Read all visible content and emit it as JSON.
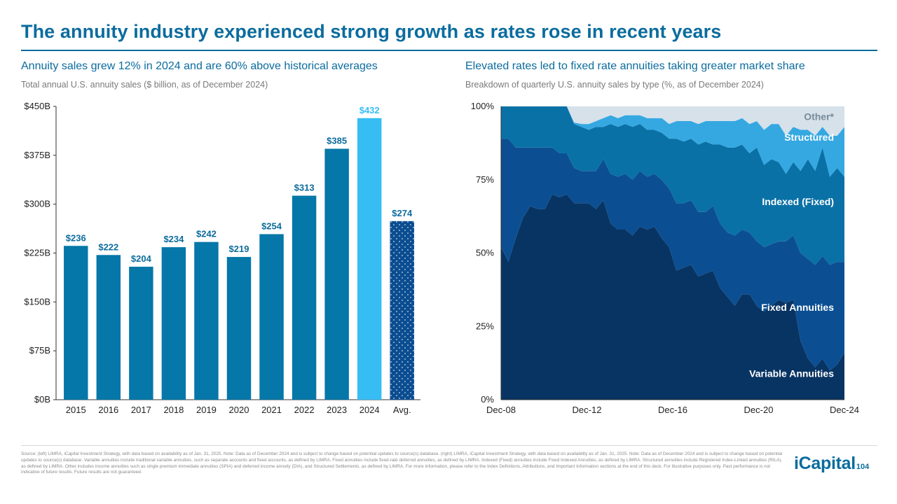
{
  "page_title": "The annuity industry experienced strong growth as rates rose in recent years",
  "left_panel": {
    "title": "Annuity sales grew 12% in 2024 and are 60% above historical averages",
    "caption": "Total annual U.S. annuity sales ($ billion, as of December 2024)"
  },
  "right_panel": {
    "title": "Elevated rates led to fixed rate annuities taking greater market share",
    "caption": "Breakdown of quarterly U.S. annuity sales by type (%, as of December 2024)"
  },
  "chart_data": [
    {
      "type": "bar",
      "title": "Total annual U.S. annuity sales ($ billion, as of December 2024)",
      "categories": [
        "2015",
        "2016",
        "2017",
        "2018",
        "2019",
        "2020",
        "2021",
        "2022",
        "2023",
        "2024",
        "Avg."
      ],
      "values": [
        236,
        222,
        204,
        234,
        242,
        219,
        254,
        313,
        385,
        432,
        274
      ],
      "data_labels": [
        "$236",
        "$222",
        "$204",
        "$234",
        "$242",
        "$219",
        "$254",
        "$313",
        "$385",
        "$432",
        "$274"
      ],
      "highlight_category": "2024",
      "average_category": "Avg.",
      "ylim": [
        0,
        450
      ],
      "yticks": [
        0,
        75,
        150,
        225,
        300,
        375,
        450
      ],
      "ytick_labels": [
        "$0B",
        "$75B",
        "$150B",
        "$225B",
        "$300B",
        "$375B",
        "$450B"
      ],
      "xlabel": "",
      "ylabel": "",
      "colors": {
        "bar": "#0577a8",
        "highlight": "#36bdf4",
        "average": "#0b4d91",
        "label": "#0b6c9e"
      }
    },
    {
      "type": "area",
      "stacked": true,
      "title": "Breakdown of quarterly U.S. annuity sales by type (%, as of December 2024)",
      "x_start": "Dec-08",
      "x_end": "Dec-24",
      "xticks": [
        "Dec-08",
        "Dec-12",
        "Dec-16",
        "Dec-20",
        "Dec-24"
      ],
      "ylim": [
        0,
        100
      ],
      "yticks": [
        0,
        25,
        50,
        75,
        100
      ],
      "ytick_labels": [
        "0%",
        "25%",
        "50%",
        "75%",
        "100%"
      ],
      "series": [
        {
          "name": "Variable Annuities",
          "color": "#083463",
          "values": [
            52,
            47,
            55,
            62,
            66,
            65,
            65,
            70,
            69,
            70,
            67,
            67,
            67,
            65,
            68,
            60,
            58,
            58,
            56,
            59,
            58,
            59,
            55,
            52,
            44,
            45,
            46,
            42,
            43,
            44,
            38,
            35,
            32,
            36,
            36,
            32,
            30,
            32,
            34,
            33,
            34,
            20,
            14,
            11,
            14,
            10,
            12,
            16
          ]
        },
        {
          "name": "Fixed Annuities",
          "color": "#0b4f92",
          "values": [
            37,
            42,
            31,
            24,
            20,
            21,
            21,
            16,
            15,
            14,
            12,
            11,
            11,
            13,
            14,
            17,
            18,
            19,
            19,
            19,
            18,
            18,
            20,
            20,
            23,
            22,
            22,
            22,
            21,
            22,
            22,
            22,
            24,
            22,
            21,
            22,
            22,
            21,
            20,
            21,
            22,
            30,
            34,
            35,
            35,
            36,
            35,
            31
          ]
        },
        {
          "name": "Indexed (Fixed)",
          "color": "#0a71a6",
          "values": [
            11,
            11,
            14,
            14,
            14,
            14,
            14,
            14,
            16,
            16,
            15,
            15,
            14,
            15,
            11,
            17,
            17,
            17,
            18,
            16,
            16,
            15,
            16,
            17,
            22,
            21,
            21,
            23,
            24,
            21,
            27,
            29,
            30,
            29,
            27,
            32,
            28,
            29,
            27,
            23,
            25,
            28,
            34,
            32,
            37,
            30,
            32,
            29
          ]
        },
        {
          "name": "Structured",
          "color": "#35a8e2",
          "values": [
            0,
            0,
            0,
            0,
            0,
            0,
            0,
            0,
            0,
            0,
            0.5,
            1,
            2,
            2,
            3,
            3,
            3,
            3,
            4,
            3,
            4,
            4,
            5,
            5,
            6,
            7,
            6,
            7,
            7,
            8,
            8,
            9,
            9,
            9,
            10,
            9,
            12,
            12,
            13,
            13,
            12,
            14,
            10,
            12,
            7,
            14,
            11,
            17
          ]
        },
        {
          "name": "Other*",
          "color": "#d6e1ea",
          "values": [
            0,
            0,
            0,
            0,
            0,
            0,
            0,
            0,
            0,
            0,
            5.5,
            6,
            6,
            5,
            4,
            3,
            4,
            3,
            3,
            3,
            4,
            4,
            4,
            6,
            5,
            5,
            5,
            6,
            5,
            5,
            5,
            5,
            5,
            4,
            6,
            5,
            8,
            6,
            6,
            10,
            7,
            8,
            8,
            10,
            7,
            10,
            10,
            7
          ]
        }
      ],
      "label_color": "#ffffff",
      "other_label_color": "#7a8b99"
    }
  ],
  "footnote": "Source: (left) LIMRA, iCapital Investment Strategy, with data based on availability as of Jan. 31, 2025. Note: Data as of December 2024 and is subject to change based on potential updates to source(s) database. (right) LIMRA, iCapital Investment Strategy, with data based on availability as of Jan. 31, 2025. Note: Data as of December 2024 and is subject to change based on potential updates to source(s) database. Variable annuities include traditional variable annuities, such as separate accounts and fixed accounts, as defined by LIMRA. Fixed annuities include fixed-rate deferred annuities, as defined by LIMRA. Indexed (Fixed) annuities include Fixed Indexed Annuities, as defined by LIMRA. Structured annuities include Registered Index-Linked annuities (RILA), as defined by LIMRA. Other includes income annuities such as single premium immediate annuities (SPIA) and deferred income annuity (DIA), and Structured Settlements, as defined by LIMRA. For more information, please refer to the Index Definitions, Attributions, and Important Information sections at the end of this deck. For illustrative purposes only. Past performance is not indicative of future results. Future results are not guaranteed.",
  "brand": {
    "logo": "iCapital",
    "page_number": "104"
  }
}
